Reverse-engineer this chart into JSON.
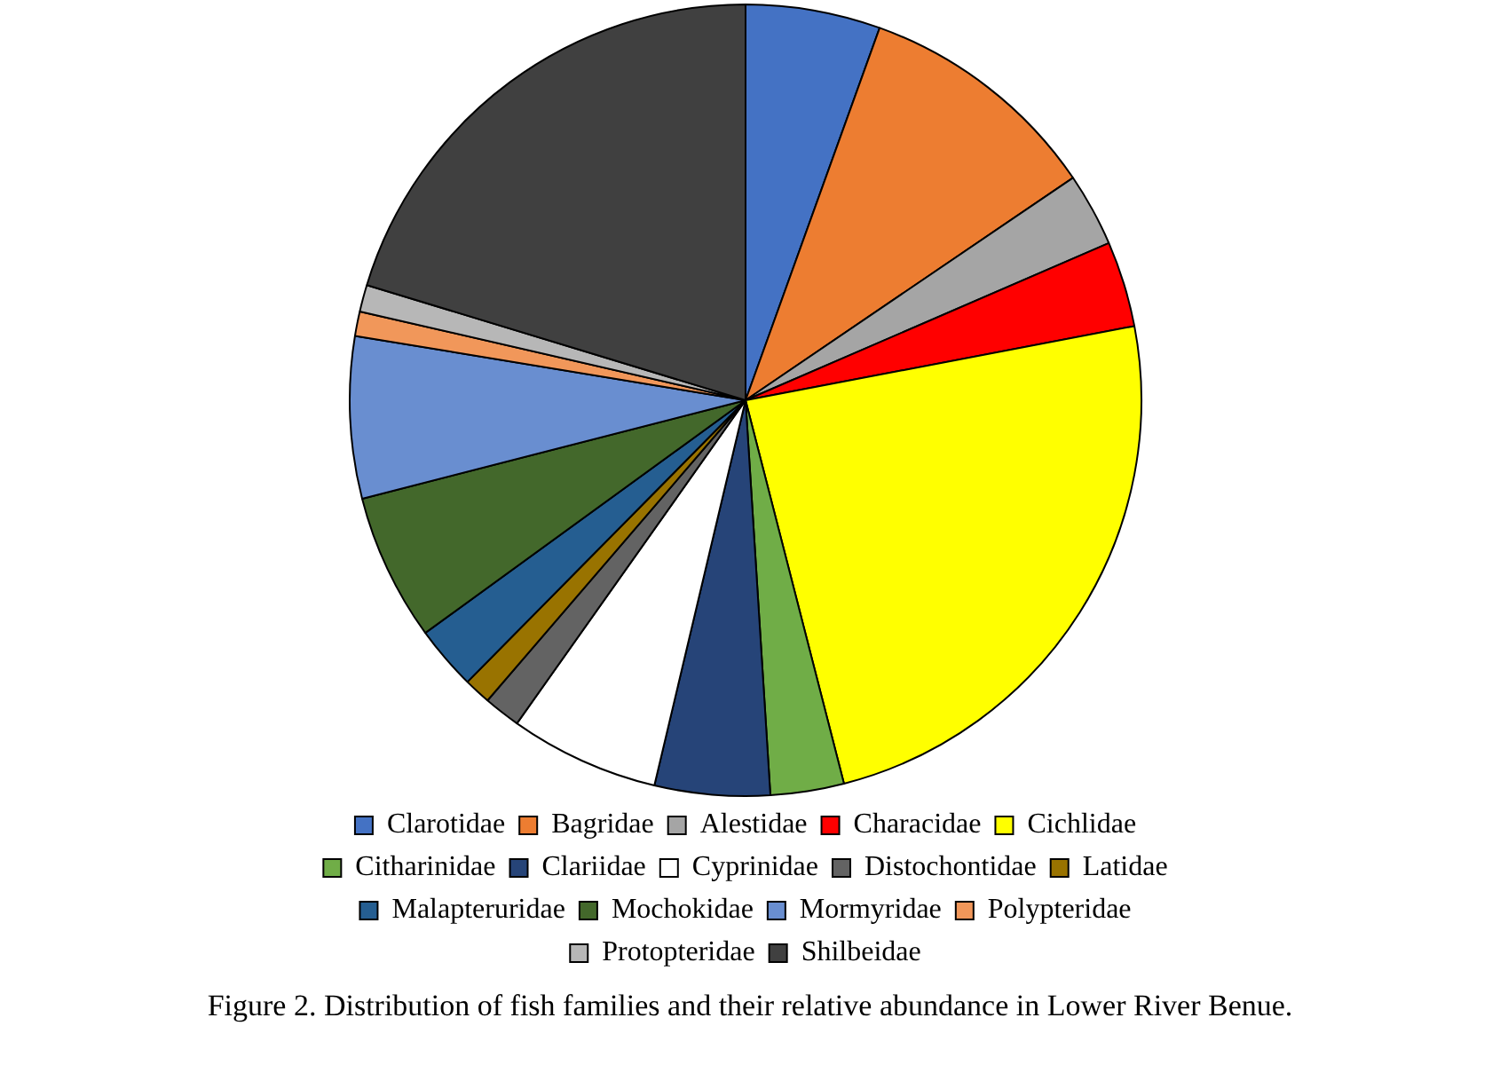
{
  "chart_data": {
    "type": "pie",
    "categories": [
      "Clarotidae",
      "Bagridae",
      "Alestidae",
      "Characidae",
      "Cichlidae",
      "Citharinidae",
      "Clariidae",
      "Cyprinidae",
      "Distochontidae",
      "Latidae",
      "Malapteruridae",
      "Mochokidae",
      "Mormyridae",
      "Polypteridae",
      "Protopteridae",
      "Shilbeidae"
    ],
    "values": [
      5.5,
      10,
      3,
      3.5,
      24,
      3,
      4.7,
      6.1,
      1.5,
      1.1,
      2.6,
      6,
      6.6,
      1,
      1.1,
      20.3
    ],
    "colors": [
      "#4472c4",
      "#ed7d31",
      "#a5a5a5",
      "#ff0000",
      "#ffff00",
      "#70ad47",
      "#264478",
      "#ffffff",
      "#636363",
      "#997300",
      "#255e91",
      "#43682b",
      "#698ed0",
      "#f1975a",
      "#b7b7b7",
      "#404040"
    ],
    "legend": "bottom",
    "annotations": [
      "Figure 2. Distribution of fish families and their relative abundance in Lower River Benue."
    ]
  }
}
